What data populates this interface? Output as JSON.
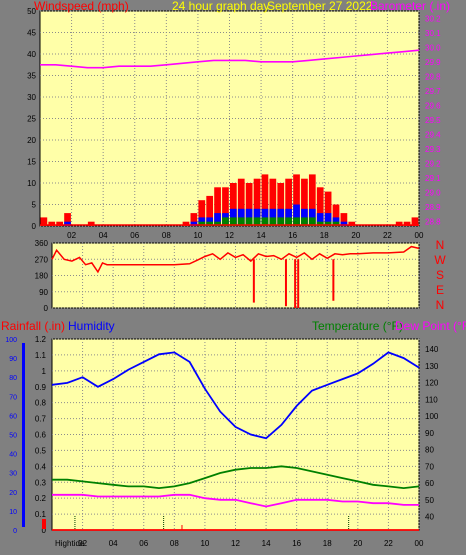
{
  "header": {
    "left_label": "Windspeed (mph)",
    "center_label": "24 hour graph day",
    "date_label": "September 27 2022",
    "right_label": "Barometer (.in)"
  },
  "direction_letters": [
    "N",
    "W",
    "S",
    "E",
    "N"
  ],
  "panel3_labels": {
    "rain": "Rainfall (.in)",
    "humidity": "Humidity",
    "temperature": "Temperature (°F)",
    "dewpoint": "Dew Point (°F)",
    "hightide": "Hightide"
  },
  "colors": {
    "panel_bg": "#FFFFA8",
    "frame": "#808080",
    "grid": "#8C8C8C",
    "wind": "#FF0000",
    "gust_mid": "#0000FF",
    "wind_low": "#008000",
    "barometer": "#FF00FF",
    "direction": "#FF0000",
    "humidity": "#0000FF",
    "temperature": "#008000",
    "dewpoint": "#FF00FF",
    "rain_axis": "#FF0000",
    "center_label": "#FFFF00",
    "marker": "#004000"
  },
  "chart_data": [
    {
      "type": "bar",
      "name": "wind",
      "x_ticks": [
        "02",
        "04",
        "06",
        "08",
        "10",
        "12",
        "14",
        "16",
        "18",
        "20",
        "22",
        "00"
      ],
      "y_ticks": [
        0,
        5,
        10,
        15,
        20,
        25,
        30,
        35,
        40,
        45,
        50
      ],
      "ylim": [
        0,
        50
      ],
      "hours": [
        0.0,
        0.5,
        1.0,
        1.5,
        2.0,
        2.5,
        3.0,
        3.5,
        4.0,
        4.5,
        5.0,
        5.5,
        6.0,
        6.5,
        7.0,
        7.5,
        8.0,
        8.5,
        9.0,
        9.5,
        10.0,
        10.5,
        11.0,
        11.5,
        12.0,
        12.5,
        13.0,
        13.5,
        14.0,
        14.5,
        15.0,
        15.5,
        16.0,
        16.5,
        17.0,
        17.5,
        18.0,
        18.5,
        19.0,
        19.5,
        20.0,
        20.5,
        21.0,
        21.5,
        22.0,
        22.5,
        23.0,
        23.5
      ],
      "gust": [
        2,
        1,
        1,
        3,
        0,
        0,
        1,
        0,
        0,
        0,
        0,
        0,
        0,
        0,
        0,
        0,
        0,
        0,
        1,
        3,
        6,
        7,
        9,
        9,
        10,
        11,
        10,
        11,
        12,
        11,
        10,
        11,
        12,
        11,
        12,
        9,
        8,
        5,
        3,
        1,
        0,
        0,
        0,
        0,
        0,
        1,
        1,
        2
      ],
      "mean": [
        0,
        0,
        0,
        1,
        0,
        0,
        0,
        0,
        0,
        0,
        0,
        0,
        0,
        0,
        0,
        0,
        0,
        0,
        0,
        1,
        2,
        2,
        3,
        3,
        4,
        4,
        4,
        4,
        4,
        4,
        4,
        4,
        5,
        4,
        4,
        3,
        3,
        2,
        1,
        0,
        0,
        0,
        0,
        0,
        0,
        0,
        0,
        0
      ],
      "low": [
        0,
        0,
        0,
        0,
        0,
        0,
        0,
        0,
        0,
        0,
        0,
        0,
        0,
        0,
        0,
        0,
        0,
        0,
        0,
        0,
        1,
        1,
        1,
        2,
        2,
        2,
        2,
        2,
        2,
        2,
        2,
        2,
        2,
        2,
        2,
        1,
        1,
        1,
        0,
        0,
        0,
        0,
        0,
        0,
        0,
        0,
        0,
        0
      ]
    },
    {
      "type": "line",
      "name": "barometer",
      "y_ticks": [
        28.8,
        28.9,
        29.0,
        29.1,
        29.2,
        29.3,
        29.4,
        29.5,
        29.6,
        29.7,
        29.8,
        29.9,
        30.0,
        30.1,
        30.2
      ],
      "ylim": [
        28.77,
        30.25
      ],
      "x": [
        0,
        1,
        2,
        3,
        4,
        5,
        6,
        7,
        8,
        9,
        10,
        11,
        12,
        13,
        14,
        15,
        16,
        17,
        18,
        19,
        20,
        21,
        22,
        23,
        24
      ],
      "y": [
        29.88,
        29.88,
        29.87,
        29.86,
        29.86,
        29.87,
        29.87,
        29.87,
        29.88,
        29.89,
        29.9,
        29.91,
        29.91,
        29.91,
        29.9,
        29.9,
        29.9,
        29.91,
        29.92,
        29.93,
        29.94,
        29.95,
        29.96,
        29.97,
        29.98
      ]
    },
    {
      "type": "line",
      "name": "wind direction",
      "y_ticks": [
        0,
        90,
        180,
        270,
        360
      ],
      "ylim": [
        0,
        360
      ],
      "x": [
        0,
        0.3,
        0.8,
        1.3,
        1.8,
        2.2,
        2.6,
        3.0,
        3.3,
        3.6,
        4.0,
        6.0,
        8.0,
        9.0,
        9.5,
        10.0,
        10.5,
        11.0,
        11.5,
        12.0,
        12.5,
        13.0,
        13.5,
        14.0,
        14.5,
        15.0,
        15.5,
        16.0,
        16.5,
        17.0,
        17.5,
        18.0,
        18.5,
        19.0,
        19.5,
        20.0,
        21.0,
        22.0,
        23.0,
        23.5,
        24.0
      ],
      "y": [
        270,
        320,
        270,
        260,
        280,
        240,
        250,
        200,
        250,
        240,
        240,
        240,
        240,
        245,
        265,
        285,
        300,
        270,
        305,
        280,
        295,
        260,
        300,
        285,
        290,
        270,
        300,
        280,
        305,
        270,
        300,
        275,
        300,
        295,
        300,
        300,
        305,
        305,
        310,
        340,
        330
      ],
      "dips": [
        [
          13.2,
          30
        ],
        [
          15.3,
          10
        ],
        [
          15.9,
          0
        ],
        [
          16.1,
          0
        ],
        [
          18.4,
          40
        ]
      ]
    },
    {
      "type": "line",
      "name": "humidity",
      "y_ticks": [
        0,
        10,
        20,
        30,
        40,
        50,
        60,
        70,
        80,
        90,
        100
      ],
      "ylim": [
        0,
        100
      ],
      "x": [
        0,
        1,
        2,
        3,
        4,
        5,
        6,
        7,
        8,
        9,
        10,
        11,
        12,
        13,
        14,
        15,
        16,
        17,
        18,
        19,
        20,
        21,
        22,
        23,
        24
      ],
      "y": [
        76,
        77,
        80,
        75,
        79,
        84,
        88,
        92,
        93,
        88,
        74,
        62,
        54,
        50,
        48,
        55,
        65,
        73,
        76,
        79,
        82,
        87,
        93,
        90,
        85
      ]
    },
    {
      "type": "line",
      "name": "temperature",
      "y_ticks": [
        40,
        50,
        60,
        70,
        80,
        90,
        100,
        110,
        120,
        130,
        140
      ],
      "ylim": [
        32,
        146
      ],
      "x": [
        0,
        1,
        2,
        3,
        4,
        5,
        6,
        7,
        8,
        9,
        10,
        11,
        12,
        13,
        14,
        15,
        16,
        17,
        18,
        19,
        20,
        21,
        22,
        23,
        24
      ],
      "y": [
        62,
        62,
        61,
        60,
        59,
        58,
        58,
        57,
        58,
        60,
        63,
        66,
        68,
        69,
        69,
        70,
        69,
        67,
        65,
        63,
        61,
        59,
        58,
        57,
        58
      ]
    },
    {
      "type": "line",
      "name": "dew point",
      "x": [
        0,
        1,
        2,
        3,
        4,
        5,
        6,
        7,
        8,
        9,
        10,
        11,
        12,
        13,
        14,
        15,
        16,
        17,
        18,
        19,
        20,
        21,
        22,
        23,
        24
      ],
      "y": [
        53,
        53,
        53,
        52,
        52,
        52,
        52,
        52,
        53,
        53,
        51,
        50,
        50,
        48,
        46,
        48,
        50,
        50,
        50,
        49,
        49,
        48,
        48,
        47,
        47
      ]
    },
    {
      "type": "line",
      "name": "rainfall",
      "y_ticks": [
        0,
        0.1,
        0.2,
        0.3,
        0.4,
        0.5,
        0.6,
        0.7,
        0.8,
        0.9,
        1,
        1.1,
        1.2
      ],
      "ylim": [
        0,
        1.2
      ],
      "x": [
        0,
        24
      ],
      "y": [
        0,
        0
      ],
      "tide_hours": [
        1.5,
        7.3,
        19.4
      ],
      "marker_hours": [
        8.5
      ]
    }
  ]
}
